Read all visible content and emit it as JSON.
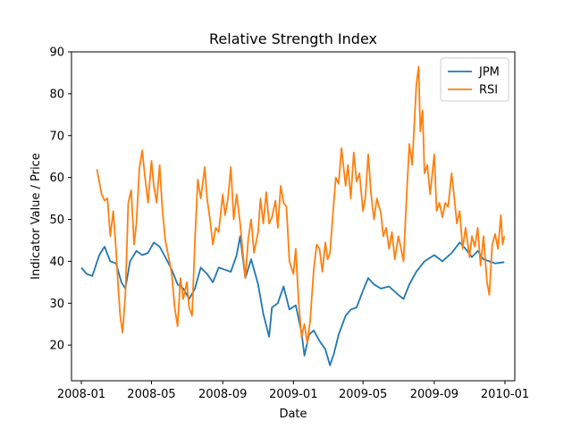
{
  "chart_data": {
    "type": "line",
    "title": "Relative Strength Index",
    "xlabel": "Date",
    "ylabel": "Indicator Value / Price",
    "xlim": [
      "2007-12-15",
      "2010-01-18"
    ],
    "ylim": [
      11.5,
      90
    ],
    "x_ticks": [
      "2008-01",
      "2008-05",
      "2008-09",
      "2009-01",
      "2009-05",
      "2009-09",
      "2010-01"
    ],
    "y_ticks": [
      20,
      30,
      40,
      50,
      60,
      70,
      80,
      90
    ],
    "legend_position": "top-right",
    "grid": false,
    "series": [
      {
        "name": "JPM",
        "color": "#1f77b4",
        "points": [
          [
            "2008-01-01",
            38.5
          ],
          [
            "2008-01-10",
            37.0
          ],
          [
            "2008-01-20",
            36.5
          ],
          [
            "2008-02-01",
            41.5
          ],
          [
            "2008-02-10",
            43.5
          ],
          [
            "2008-02-20",
            40.0
          ],
          [
            "2008-03-01",
            39.5
          ],
          [
            "2008-03-10",
            35.0
          ],
          [
            "2008-03-17",
            33.5
          ],
          [
            "2008-03-25",
            40.0
          ],
          [
            "2008-04-05",
            42.5
          ],
          [
            "2008-04-15",
            41.5
          ],
          [
            "2008-04-25",
            42.0
          ],
          [
            "2008-05-05",
            44.5
          ],
          [
            "2008-05-15",
            43.5
          ],
          [
            "2008-05-25",
            41.0
          ],
          [
            "2008-06-05",
            38.0
          ],
          [
            "2008-06-15",
            34.5
          ],
          [
            "2008-06-25",
            33.5
          ],
          [
            "2008-07-05",
            31.0
          ],
          [
            "2008-07-15",
            33.5
          ],
          [
            "2008-07-25",
            38.5
          ],
          [
            "2008-08-05",
            37.0
          ],
          [
            "2008-08-15",
            35.0
          ],
          [
            "2008-08-25",
            38.5
          ],
          [
            "2008-09-05",
            38.0
          ],
          [
            "2008-09-15",
            37.5
          ],
          [
            "2008-09-25",
            41.5
          ],
          [
            "2008-10-01",
            46.0
          ],
          [
            "2008-10-10",
            36.0
          ],
          [
            "2008-10-20",
            40.5
          ],
          [
            "2008-11-01",
            34.5
          ],
          [
            "2008-11-10",
            27.5
          ],
          [
            "2008-11-20",
            22.0
          ],
          [
            "2008-11-25",
            29.0
          ],
          [
            "2008-12-05",
            30.0
          ],
          [
            "2008-12-15",
            34.0
          ],
          [
            "2008-12-25",
            28.5
          ],
          [
            "2009-01-05",
            29.5
          ],
          [
            "2009-01-15",
            23.0
          ],
          [
            "2009-01-20",
            17.5
          ],
          [
            "2009-01-28",
            22.5
          ],
          [
            "2009-02-05",
            23.5
          ],
          [
            "2009-02-15",
            21.0
          ],
          [
            "2009-02-25",
            19.0
          ],
          [
            "2009-03-05",
            15.2
          ],
          [
            "2009-03-12",
            18.0
          ],
          [
            "2009-03-20",
            22.5
          ],
          [
            "2009-04-01",
            27.0
          ],
          [
            "2009-04-10",
            28.5
          ],
          [
            "2009-04-20",
            29.0
          ],
          [
            "2009-05-01",
            33.0
          ],
          [
            "2009-05-10",
            36.0
          ],
          [
            "2009-05-20",
            34.5
          ],
          [
            "2009-06-01",
            33.5
          ],
          [
            "2009-06-15",
            34.0
          ],
          [
            "2009-07-01",
            32.0
          ],
          [
            "2009-07-10",
            31.0
          ],
          [
            "2009-07-20",
            34.5
          ],
          [
            "2009-08-01",
            37.5
          ],
          [
            "2009-08-15",
            40.0
          ],
          [
            "2009-09-01",
            41.5
          ],
          [
            "2009-09-15",
            40.0
          ],
          [
            "2009-10-01",
            42.0
          ],
          [
            "2009-10-15",
            44.5
          ],
          [
            "2009-10-25",
            43.0
          ],
          [
            "2009-11-05",
            41.0
          ],
          [
            "2009-11-15",
            42.5
          ],
          [
            "2009-11-25",
            40.5
          ],
          [
            "2009-12-05",
            40.0
          ],
          [
            "2009-12-15",
            39.5
          ],
          [
            "2009-12-31",
            39.8
          ]
        ]
      },
      {
        "name": "RSI",
        "color": "#ff7f0e",
        "points": [
          [
            "2008-01-28",
            62.0
          ],
          [
            "2008-02-01",
            59.0
          ],
          [
            "2008-02-05",
            56.0
          ],
          [
            "2008-02-10",
            54.5
          ],
          [
            "2008-02-15",
            55.0
          ],
          [
            "2008-02-20",
            46.0
          ],
          [
            "2008-02-25",
            52.0
          ],
          [
            "2008-03-01",
            42.5
          ],
          [
            "2008-03-05",
            33.0
          ],
          [
            "2008-03-08",
            27.0
          ],
          [
            "2008-03-12",
            23.0
          ],
          [
            "2008-03-17",
            32.0
          ],
          [
            "2008-03-22",
            54.0
          ],
          [
            "2008-03-27",
            57.0
          ],
          [
            "2008-04-01",
            44.0
          ],
          [
            "2008-04-05",
            49.0
          ],
          [
            "2008-04-10",
            62.0
          ],
          [
            "2008-04-15",
            66.5
          ],
          [
            "2008-04-20",
            60.0
          ],
          [
            "2008-04-25",
            54.0
          ],
          [
            "2008-05-01",
            64.0
          ],
          [
            "2008-05-05",
            58.0
          ],
          [
            "2008-05-10",
            54.0
          ],
          [
            "2008-05-15",
            63.0
          ],
          [
            "2008-05-20",
            52.0
          ],
          [
            "2008-05-25",
            45.0
          ],
          [
            "2008-06-01",
            40.0
          ],
          [
            "2008-06-05",
            37.0
          ],
          [
            "2008-06-10",
            29.0
          ],
          [
            "2008-06-15",
            24.5
          ],
          [
            "2008-06-20",
            36.0
          ],
          [
            "2008-06-25",
            31.0
          ],
          [
            "2008-07-01",
            35.0
          ],
          [
            "2008-07-05",
            29.0
          ],
          [
            "2008-07-10",
            27.0
          ],
          [
            "2008-07-15",
            45.0
          ],
          [
            "2008-07-20",
            59.5
          ],
          [
            "2008-07-25",
            55.0
          ],
          [
            "2008-08-01",
            62.5
          ],
          [
            "2008-08-05",
            55.0
          ],
          [
            "2008-08-10",
            50.0
          ],
          [
            "2008-08-15",
            44.0
          ],
          [
            "2008-08-20",
            48.0
          ],
          [
            "2008-08-25",
            47.0
          ],
          [
            "2008-09-01",
            56.0
          ],
          [
            "2008-09-05",
            51.0
          ],
          [
            "2008-09-10",
            55.0
          ],
          [
            "2008-09-15",
            62.5
          ],
          [
            "2008-09-20",
            50.0
          ],
          [
            "2008-09-25",
            56.0
          ],
          [
            "2008-10-01",
            49.0
          ],
          [
            "2008-10-05",
            43.0
          ],
          [
            "2008-10-10",
            36.0
          ],
          [
            "2008-10-15",
            45.5
          ],
          [
            "2008-10-20",
            50.0
          ],
          [
            "2008-10-25",
            42.0
          ],
          [
            "2008-11-01",
            47.0
          ],
          [
            "2008-11-05",
            55.0
          ],
          [
            "2008-11-10",
            49.0
          ],
          [
            "2008-11-15",
            56.5
          ],
          [
            "2008-11-20",
            49.0
          ],
          [
            "2008-11-25",
            50.5
          ],
          [
            "2008-12-01",
            54.5
          ],
          [
            "2008-12-05",
            48.0
          ],
          [
            "2008-12-10",
            58.0
          ],
          [
            "2008-12-15",
            54.0
          ],
          [
            "2008-12-20",
            53.0
          ],
          [
            "2008-12-25",
            40.0
          ],
          [
            "2009-01-01",
            37.0
          ],
          [
            "2009-01-05",
            43.0
          ],
          [
            "2009-01-10",
            30.0
          ],
          [
            "2009-01-15",
            22.0
          ],
          [
            "2009-01-20",
            25.0
          ],
          [
            "2009-01-25",
            20.5
          ],
          [
            "2009-01-30",
            26.0
          ],
          [
            "2009-02-05",
            38.0
          ],
          [
            "2009-02-10",
            44.0
          ],
          [
            "2009-02-15",
            43.0
          ],
          [
            "2009-02-20",
            37.5
          ],
          [
            "2009-02-25",
            44.5
          ],
          [
            "2009-03-01",
            40.5
          ],
          [
            "2009-03-05",
            42.0
          ],
          [
            "2009-03-10",
            51.0
          ],
          [
            "2009-03-15",
            60.0
          ],
          [
            "2009-03-20",
            58.5
          ],
          [
            "2009-03-25",
            67.0
          ],
          [
            "2009-04-01",
            58.0
          ],
          [
            "2009-04-05",
            63.0
          ],
          [
            "2009-04-10",
            55.0
          ],
          [
            "2009-04-15",
            66.0
          ],
          [
            "2009-04-20",
            59.0
          ],
          [
            "2009-04-25",
            61.0
          ],
          [
            "2009-05-01",
            52.0
          ],
          [
            "2009-05-05",
            55.0
          ],
          [
            "2009-05-10",
            65.5
          ],
          [
            "2009-05-15",
            56.0
          ],
          [
            "2009-05-20",
            50.0
          ],
          [
            "2009-05-25",
            55.0
          ],
          [
            "2009-06-01",
            51.5
          ],
          [
            "2009-06-05",
            46.0
          ],
          [
            "2009-06-10",
            48.0
          ],
          [
            "2009-06-15",
            43.0
          ],
          [
            "2009-06-20",
            47.0
          ],
          [
            "2009-06-25",
            40.5
          ],
          [
            "2009-07-01",
            46.0
          ],
          [
            "2009-07-05",
            43.5
          ],
          [
            "2009-07-10",
            40.0
          ],
          [
            "2009-07-15",
            55.0
          ],
          [
            "2009-07-20",
            68.0
          ],
          [
            "2009-07-25",
            63.0
          ],
          [
            "2009-08-01",
            82.0
          ],
          [
            "2009-08-05",
            86.5
          ],
          [
            "2009-08-08",
            71.0
          ],
          [
            "2009-08-12",
            76.0
          ],
          [
            "2009-08-15",
            61.0
          ],
          [
            "2009-08-20",
            63.0
          ],
          [
            "2009-08-25",
            56.0
          ],
          [
            "2009-09-01",
            65.5
          ],
          [
            "2009-09-05",
            52.0
          ],
          [
            "2009-09-10",
            54.0
          ],
          [
            "2009-09-15",
            50.5
          ],
          [
            "2009-09-20",
            54.0
          ],
          [
            "2009-09-25",
            53.0
          ],
          [
            "2009-10-01",
            61.0
          ],
          [
            "2009-10-05",
            56.0
          ],
          [
            "2009-10-10",
            49.0
          ],
          [
            "2009-10-15",
            52.0
          ],
          [
            "2009-10-20",
            43.0
          ],
          [
            "2009-10-25",
            48.0
          ],
          [
            "2009-11-01",
            41.0
          ],
          [
            "2009-11-05",
            46.0
          ],
          [
            "2009-11-10",
            43.5
          ],
          [
            "2009-11-15",
            48.0
          ],
          [
            "2009-11-20",
            39.0
          ],
          [
            "2009-11-25",
            46.0
          ],
          [
            "2009-12-01",
            35.0
          ],
          [
            "2009-12-05",
            32.0
          ],
          [
            "2009-12-10",
            44.0
          ],
          [
            "2009-12-15",
            46.5
          ],
          [
            "2009-12-20",
            43.0
          ],
          [
            "2009-12-25",
            51.0
          ],
          [
            "2009-12-28",
            44.0
          ],
          [
            "2009-12-31",
            46.0
          ]
        ]
      }
    ]
  }
}
